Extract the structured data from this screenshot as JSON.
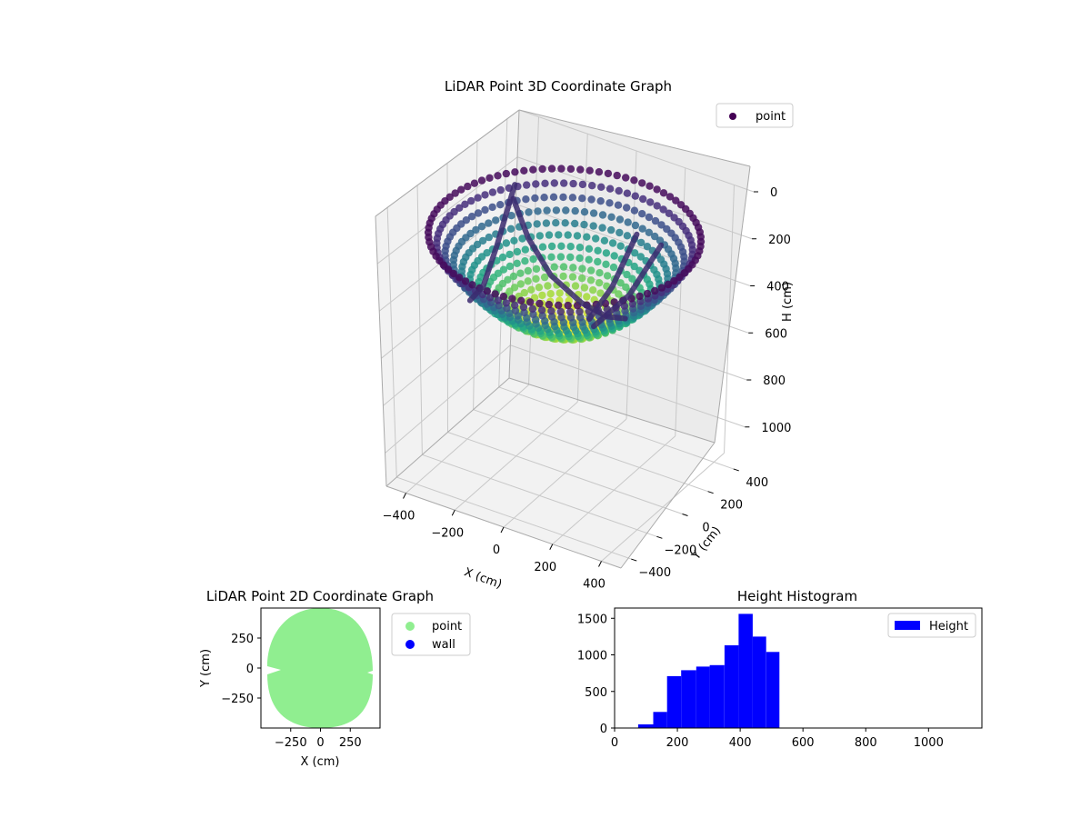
{
  "chart_data": [
    {
      "type": "scatter3d",
      "title": "LiDAR Point 3D Coordinate Graph",
      "xlabel": "X (cm)",
      "ylabel": "Y (cm)",
      "zlabel": "H (cm)",
      "xticks": [
        -400,
        -200,
        0,
        200,
        400
      ],
      "yticks": [
        -400,
        -200,
        0,
        200,
        400
      ],
      "zticks": [
        0,
        200,
        400,
        600,
        800,
        1000
      ],
      "xlim": [
        -480,
        480
      ],
      "ylim": [
        -480,
        480
      ],
      "zlim": [
        0,
        1140
      ],
      "z_inverted": true,
      "colormap": "viridis",
      "legend": [
        {
          "label": "point",
          "color": "#440154",
          "marker": "circle"
        }
      ],
      "legend_position": "top-right",
      "grid": true,
      "surface": "bowl-shaped point cloud, rim at H≈100–200, bottom at H≈500; interior colored by height (yellow-green deepest, dark purple rim); several dark curved wall traces inside the bowl"
    },
    {
      "type": "scatter",
      "title": "LiDAR Point 2D Coordinate Graph",
      "xlabel": "X (cm)",
      "ylabel": "Y (cm)",
      "xticks": [
        -250,
        0,
        250
      ],
      "yticks": [
        -250,
        0,
        250
      ],
      "xlim": [
        -500,
        500
      ],
      "ylim": [
        -500,
        500
      ],
      "series": [
        {
          "name": "point",
          "color": "#90ee90",
          "region": "ellipse centered (0,0), radius X≈460, Y≈500, with notches near Y≈0 on both sides"
        },
        {
          "name": "wall",
          "color": "#0000ff",
          "values": []
        }
      ],
      "legend_position": "outside-right"
    },
    {
      "type": "histogram",
      "title": "Height Histogram",
      "xlabel": "",
      "ylabel": "",
      "xticks": [
        0,
        200,
        400,
        600,
        800,
        1000
      ],
      "yticks": [
        0,
        500,
        1000,
        1500
      ],
      "xlim": [
        0,
        1170
      ],
      "ylim": [
        0,
        1640
      ],
      "color": "#0000ff",
      "legend": [
        {
          "label": "Height",
          "color": "#0000ff"
        }
      ],
      "legend_position": "top-right",
      "bins": [
        {
          "x0": 75,
          "x1": 123,
          "count": 50
        },
        {
          "x0": 123,
          "x1": 167,
          "count": 220
        },
        {
          "x0": 167,
          "x1": 212,
          "count": 710
        },
        {
          "x0": 212,
          "x1": 260,
          "count": 790
        },
        {
          "x0": 260,
          "x1": 303,
          "count": 840
        },
        {
          "x0": 303,
          "x1": 350,
          "count": 860
        },
        {
          "x0": 350,
          "x1": 395,
          "count": 1130
        },
        {
          "x0": 395,
          "x1": 440,
          "count": 1560
        },
        {
          "x0": 440,
          "x1": 483,
          "count": 1250
        },
        {
          "x0": 483,
          "x1": 525,
          "count": 1040
        }
      ]
    }
  ]
}
